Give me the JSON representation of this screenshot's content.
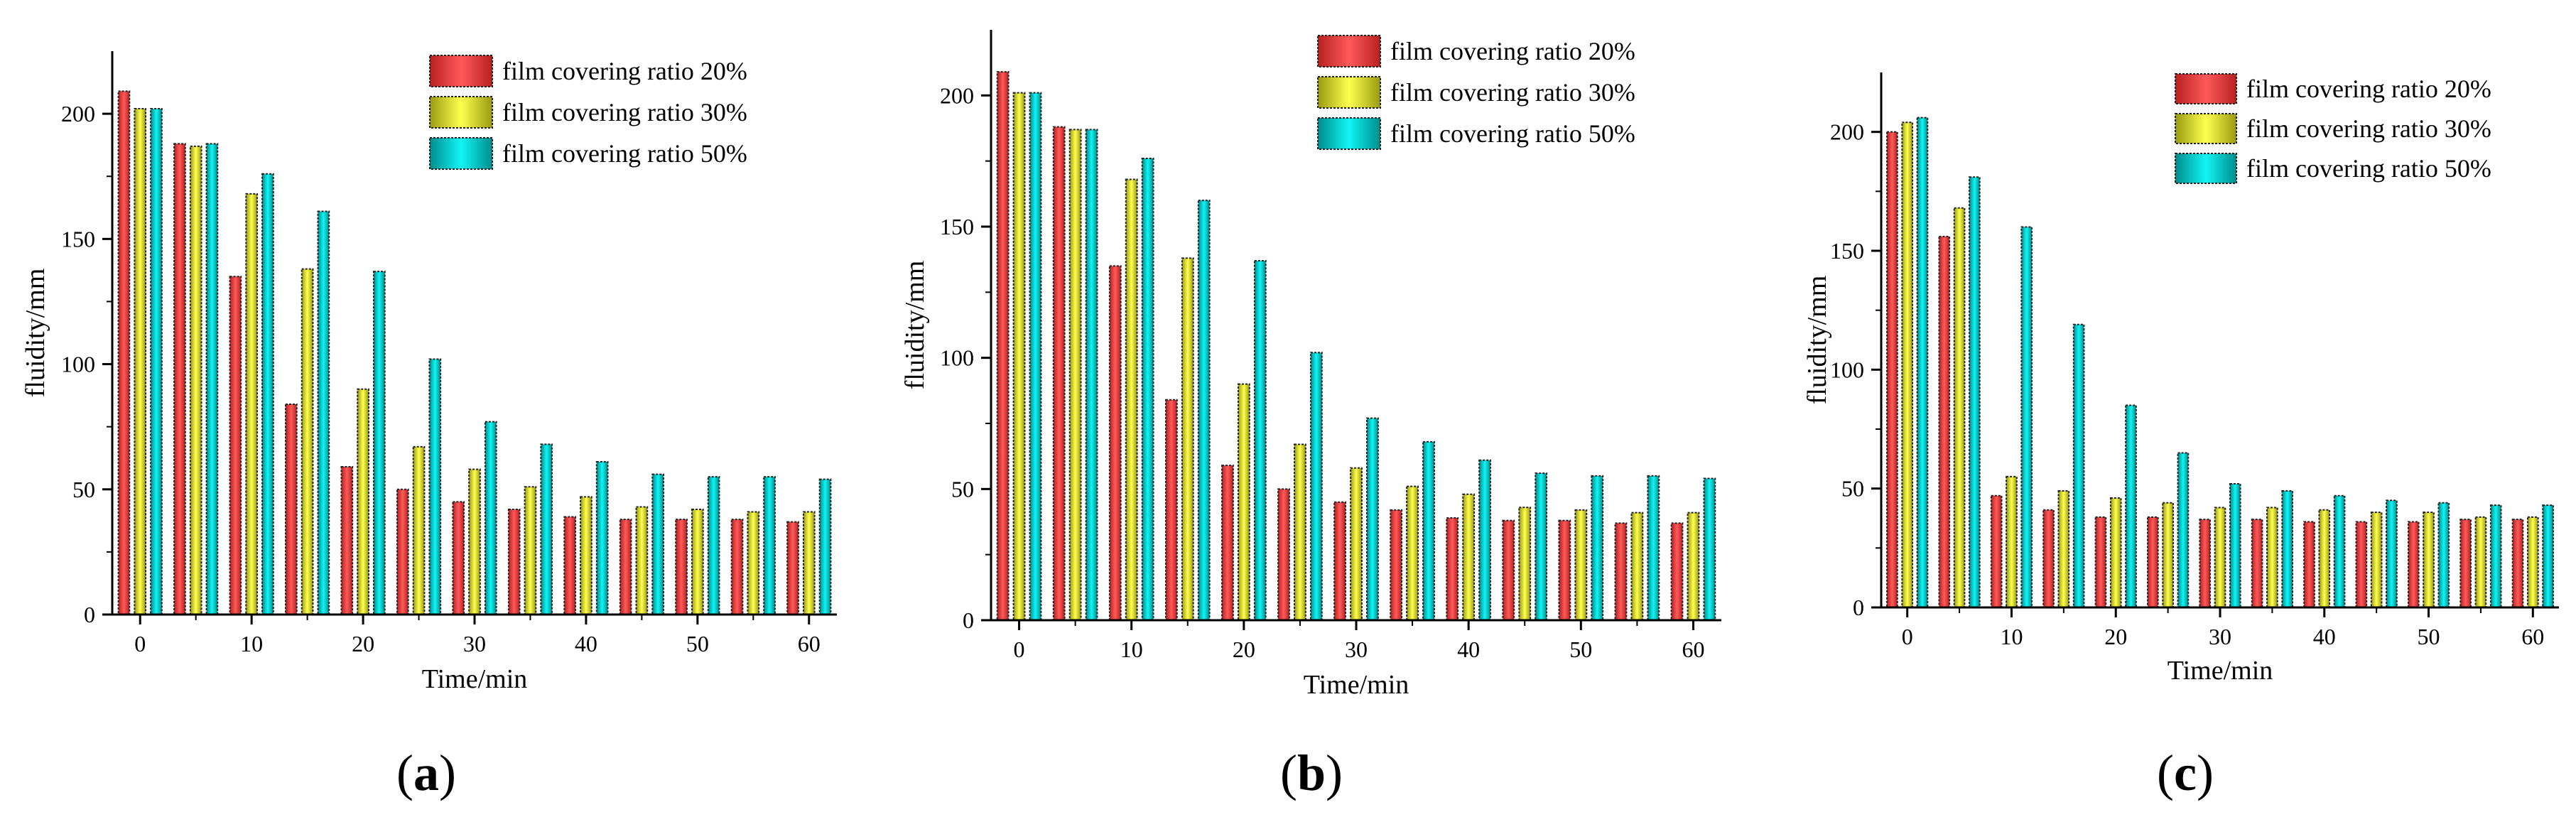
{
  "chart_data": [
    {
      "type": "bar",
      "panel": "a",
      "xlabel": "Time/min",
      "ylabel": "fluidity/mm",
      "ylim": [
        0,
        225
      ],
      "xlim": [
        -2.5,
        62.5
      ],
      "y_ticks": [
        0,
        50,
        100,
        150,
        200
      ],
      "x_ticks": [
        0,
        10,
        20,
        30,
        40,
        50,
        60
      ],
      "categories": [
        0,
        5,
        10,
        15,
        20,
        25,
        30,
        35,
        40,
        45,
        50,
        55,
        60
      ],
      "legend_position": "top-right",
      "series": [
        {
          "name": "film covering ratio 20%",
          "color": "#ff4d4d",
          "values": [
            209,
            188,
            135,
            84,
            59,
            50,
            45,
            42,
            39,
            38,
            38,
            38,
            37
          ]
        },
        {
          "name": "film covering ratio 30%",
          "color": "#ffff40",
          "values": [
            202,
            187,
            168,
            138,
            90,
            67,
            58,
            51,
            47,
            43,
            42,
            41,
            41
          ]
        },
        {
          "name": "film covering ratio 50%",
          "color": "#00e5e5",
          "values": [
            202,
            188,
            176,
            161,
            137,
            102,
            77,
            68,
            61,
            56,
            55,
            55,
            54
          ]
        }
      ]
    },
    {
      "type": "bar",
      "panel": "b",
      "xlabel": "Time/min",
      "ylabel": "fluidity/mm",
      "ylim": [
        0,
        225
      ],
      "xlim": [
        -2.5,
        62.5
      ],
      "y_ticks": [
        0,
        50,
        100,
        150,
        200
      ],
      "x_ticks": [
        0,
        10,
        20,
        30,
        40,
        50,
        60
      ],
      "categories": [
        0,
        5,
        10,
        15,
        20,
        25,
        30,
        35,
        40,
        45,
        50,
        55,
        60
      ],
      "legend_position": "top-right",
      "series": [
        {
          "name": "film covering ratio 20%",
          "color": "#ff4d4d",
          "values": [
            209,
            188,
            135,
            84,
            59,
            50,
            45,
            42,
            39,
            38,
            38,
            37,
            37
          ]
        },
        {
          "name": "film covering ratio 30%",
          "color": "#ffff40",
          "values": [
            201,
            187,
            168,
            138,
            90,
            67,
            58,
            51,
            48,
            43,
            42,
            41,
            41
          ]
        },
        {
          "name": "film covering ratio 50%",
          "color": "#00e5e5",
          "values": [
            201,
            187,
            176,
            160,
            137,
            102,
            77,
            68,
            61,
            56,
            55,
            55,
            54
          ]
        }
      ]
    },
    {
      "type": "bar",
      "panel": "c",
      "xlabel": "Time/min",
      "ylabel": "fluidity/mm",
      "ylim": [
        0,
        225
      ],
      "xlim": [
        -2.5,
        62.5
      ],
      "y_ticks": [
        0,
        50,
        100,
        150,
        200
      ],
      "x_ticks": [
        0,
        10,
        20,
        30,
        40,
        50,
        60
      ],
      "categories": [
        0,
        5,
        10,
        15,
        20,
        25,
        30,
        35,
        40,
        45,
        50,
        55,
        60
      ],
      "legend_position": "top-right",
      "series": [
        {
          "name": "film covering ratio 20%",
          "color": "#ff4d4d",
          "values": [
            200,
            156,
            47,
            41,
            38,
            38,
            37,
            37,
            36,
            36,
            36,
            37,
            37
          ]
        },
        {
          "name": "film covering ratio 30%",
          "color": "#ffff40",
          "values": [
            204,
            168,
            55,
            49,
            46,
            44,
            42,
            42,
            41,
            40,
            40,
            38,
            38
          ]
        },
        {
          "name": "film covering ratio 50%",
          "color": "#00e5e5",
          "values": [
            206,
            181,
            160,
            119,
            85,
            65,
            52,
            49,
            47,
            45,
            44,
            43,
            43
          ]
        }
      ]
    }
  ],
  "panel_labels": [
    {
      "open": "(",
      "letter": "a",
      "close": ")"
    },
    {
      "open": "(",
      "letter": "b",
      "close": ")"
    },
    {
      "open": "(",
      "letter": "c",
      "close": ")"
    }
  ]
}
